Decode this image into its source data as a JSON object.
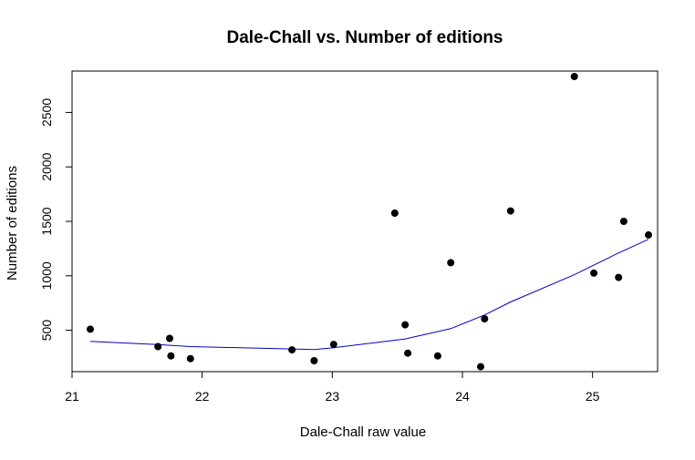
{
  "chart_data": {
    "type": "scatter",
    "title": "Dale-Chall vs. Number of editions",
    "xlabel": "Dale-Chall raw value",
    "ylabel": "Number of editions",
    "xlim": [
      21.0,
      25.5
    ],
    "ylim": [
      120,
      2880
    ],
    "grid": false,
    "xticks": [
      21,
      22,
      23,
      24,
      25
    ],
    "yticks": [
      500,
      1000,
      1500,
      2000,
      2500
    ],
    "points": [
      {
        "x": 21.14,
        "y": 510
      },
      {
        "x": 21.66,
        "y": 350
      },
      {
        "x": 21.75,
        "y": 425
      },
      {
        "x": 21.76,
        "y": 265
      },
      {
        "x": 21.91,
        "y": 240
      },
      {
        "x": 22.69,
        "y": 320
      },
      {
        "x": 22.86,
        "y": 220
      },
      {
        "x": 23.01,
        "y": 370
      },
      {
        "x": 23.48,
        "y": 1575
      },
      {
        "x": 23.56,
        "y": 550
      },
      {
        "x": 23.58,
        "y": 290
      },
      {
        "x": 23.81,
        "y": 265
      },
      {
        "x": 23.91,
        "y": 1120
      },
      {
        "x": 24.14,
        "y": 165
      },
      {
        "x": 24.17,
        "y": 605
      },
      {
        "x": 24.37,
        "y": 1595
      },
      {
        "x": 24.86,
        "y": 2830
      },
      {
        "x": 25.01,
        "y": 1025
      },
      {
        "x": 25.2,
        "y": 985
      },
      {
        "x": 25.24,
        "y": 1500
      },
      {
        "x": 25.43,
        "y": 1375
      }
    ],
    "trend_line": {
      "color": "#0000cc",
      "points": [
        {
          "x": 21.14,
          "y": 398
        },
        {
          "x": 21.66,
          "y": 368
        },
        {
          "x": 21.91,
          "y": 350
        },
        {
          "x": 22.69,
          "y": 328
        },
        {
          "x": 22.86,
          "y": 322
        },
        {
          "x": 23.01,
          "y": 340
        },
        {
          "x": 23.56,
          "y": 420
        },
        {
          "x": 23.91,
          "y": 515
        },
        {
          "x": 24.17,
          "y": 640
        },
        {
          "x": 24.37,
          "y": 760
        },
        {
          "x": 24.86,
          "y": 1010
        },
        {
          "x": 25.2,
          "y": 1210
        },
        {
          "x": 25.43,
          "y": 1335
        }
      ]
    },
    "point_color": "#000000"
  }
}
